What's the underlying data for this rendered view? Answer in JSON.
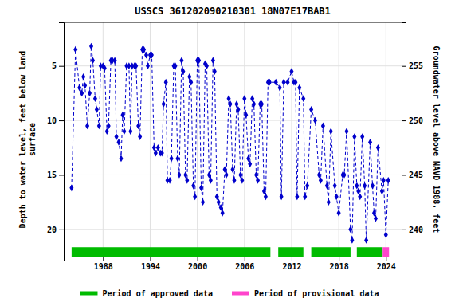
{
  "chart_data": {
    "type": "line",
    "title": "USSCS 361202090210301 18N07E17BAB1",
    "ylabel": "Depth to water level, feet below land\nsurface",
    "y2label": "Groundwater level above NAVD 1988, feet",
    "xlim": [
      1983.0,
      2026.0
    ],
    "xticks": [
      1988,
      1994,
      2000,
      2006,
      2012,
      2018,
      2024
    ],
    "ylim": [
      22.5,
      1.0
    ],
    "yticks": [
      5,
      10,
      15,
      20
    ],
    "y2lim": [
      237.5,
      259.0
    ],
    "y2ticks": [
      255,
      250,
      245,
      240
    ],
    "grid": true,
    "color": "#0000cc",
    "marker": "diamond",
    "line_style": "dashed",
    "x": [
      1984.0,
      1984.5,
      1985.0,
      1985.3,
      1985.5,
      1985.7,
      1986.0,
      1986.3,
      1986.5,
      1986.7,
      1987.0,
      1987.2,
      1987.5,
      1987.7,
      1988.0,
      1988.2,
      1988.5,
      1988.7,
      1989.0,
      1989.2,
      1989.5,
      1989.7,
      1990.0,
      1990.3,
      1990.5,
      1990.7,
      1991.0,
      1991.3,
      1991.5,
      1991.7,
      1992.0,
      1992.2,
      1992.5,
      1992.7,
      1993.0,
      1993.2,
      1993.5,
      1993.7,
      1994.0,
      1994.2,
      1994.5,
      1994.7,
      1995.0,
      1995.3,
      1995.5,
      1995.7,
      1996.0,
      1996.2,
      1996.5,
      1996.7,
      1997.0,
      1997.2,
      1997.5,
      1997.7,
      1998.0,
      1998.2,
      1998.5,
      1998.7,
      1999.0,
      1999.2,
      1999.5,
      1999.7,
      2000.0,
      2000.2,
      2000.5,
      2000.7,
      2001.0,
      2001.2,
      2001.5,
      2001.7,
      2002.0,
      2002.2,
      2002.5,
      2002.7,
      2003.0,
      2003.2,
      2003.5,
      2003.7,
      2004.0,
      2004.2,
      2004.5,
      2004.7,
      2005.0,
      2005.2,
      2005.5,
      2005.7,
      2006.0,
      2006.2,
      2006.5,
      2006.7,
      2007.0,
      2007.2,
      2007.5,
      2007.7,
      2008.0,
      2008.2,
      2008.5,
      2008.7,
      2009.0,
      2009.2,
      2010.0,
      2010.5,
      2010.7,
      2011.0,
      2011.5,
      2012.0,
      2012.3,
      2012.5,
      2012.7,
      2013.0,
      2013.5,
      2013.7,
      2014.0,
      2014.5,
      2015.0,
      2015.5,
      2015.7,
      2016.0,
      2016.5,
      2016.7,
      2017.0,
      2017.5,
      2017.7,
      2018.0,
      2018.5,
      2018.7,
      2019.0,
      2019.5,
      2019.7,
      2020.0,
      2020.3,
      2020.5,
      2020.7,
      2021.0,
      2021.3,
      2021.5,
      2022.0,
      2022.3,
      2022.5,
      2022.7,
      2023.0,
      2023.5,
      2023.7,
      2024.0,
      2024.3
    ],
    "values": [
      16.2,
      3.5,
      7.0,
      7.5,
      6.0,
      6.8,
      10.5,
      7.5,
      3.2,
      4.5,
      8.0,
      9.0,
      10.5,
      5.0,
      5.0,
      5.2,
      11.0,
      10.5,
      4.5,
      4.5,
      4.5,
      11.5,
      12.0,
      13.5,
      9.5,
      11.0,
      5.0,
      5.0,
      11.0,
      5.0,
      5.0,
      5.0,
      10.5,
      11.5,
      3.5,
      3.5,
      4.0,
      5.0,
      4.0,
      4.0,
      12.5,
      13.0,
      12.5,
      13.0,
      13.0,
      8.5,
      6.5,
      15.5,
      15.5,
      13.5,
      5.0,
      5.0,
      13.5,
      15.0,
      4.5,
      5.5,
      15.0,
      15.5,
      6.0,
      6.5,
      16.0,
      17.0,
      4.5,
      4.5,
      16.2,
      17.5,
      4.8,
      5.0,
      15.0,
      15.5,
      4.5,
      5.5,
      17.0,
      17.5,
      18.0,
      18.5,
      14.5,
      15.0,
      8.0,
      8.5,
      14.5,
      15.5,
      8.5,
      9.0,
      15.0,
      15.5,
      8.0,
      9.5,
      13.5,
      14.0,
      8.0,
      8.5,
      15.0,
      15.5,
      8.5,
      8.5,
      16.5,
      17.0,
      6.5,
      6.5,
      6.5,
      7.0,
      17.0,
      6.5,
      6.5,
      5.5,
      6.5,
      6.5,
      17.0,
      7.0,
      8.0,
      17.0,
      16.0,
      9.0,
      10.0,
      15.0,
      15.5,
      10.5,
      16.0,
      17.5,
      11.0,
      16.0,
      17.0,
      18.5,
      15.0,
      15.0,
      11.0,
      20.0,
      21.0,
      11.5,
      16.0,
      16.5,
      17.0,
      11.5,
      16.0,
      21.0,
      12.0,
      16.0,
      18.5,
      19.0,
      12.5,
      16.5,
      15.5,
      20.5,
      15.5
    ],
    "bands": [
      {
        "name": "Period of approved data",
        "color": "#00bb00",
        "ranges": [
          [
            1984.0,
            2009.3
          ],
          [
            2010.3,
            2013.5
          ],
          [
            2014.5,
            2019.5
          ],
          [
            2020.3,
            2023.6
          ]
        ]
      },
      {
        "name": "Period of provisional data",
        "color": "#ff44cc",
        "ranges": [
          [
            2023.6,
            2024.4
          ]
        ]
      }
    ]
  }
}
